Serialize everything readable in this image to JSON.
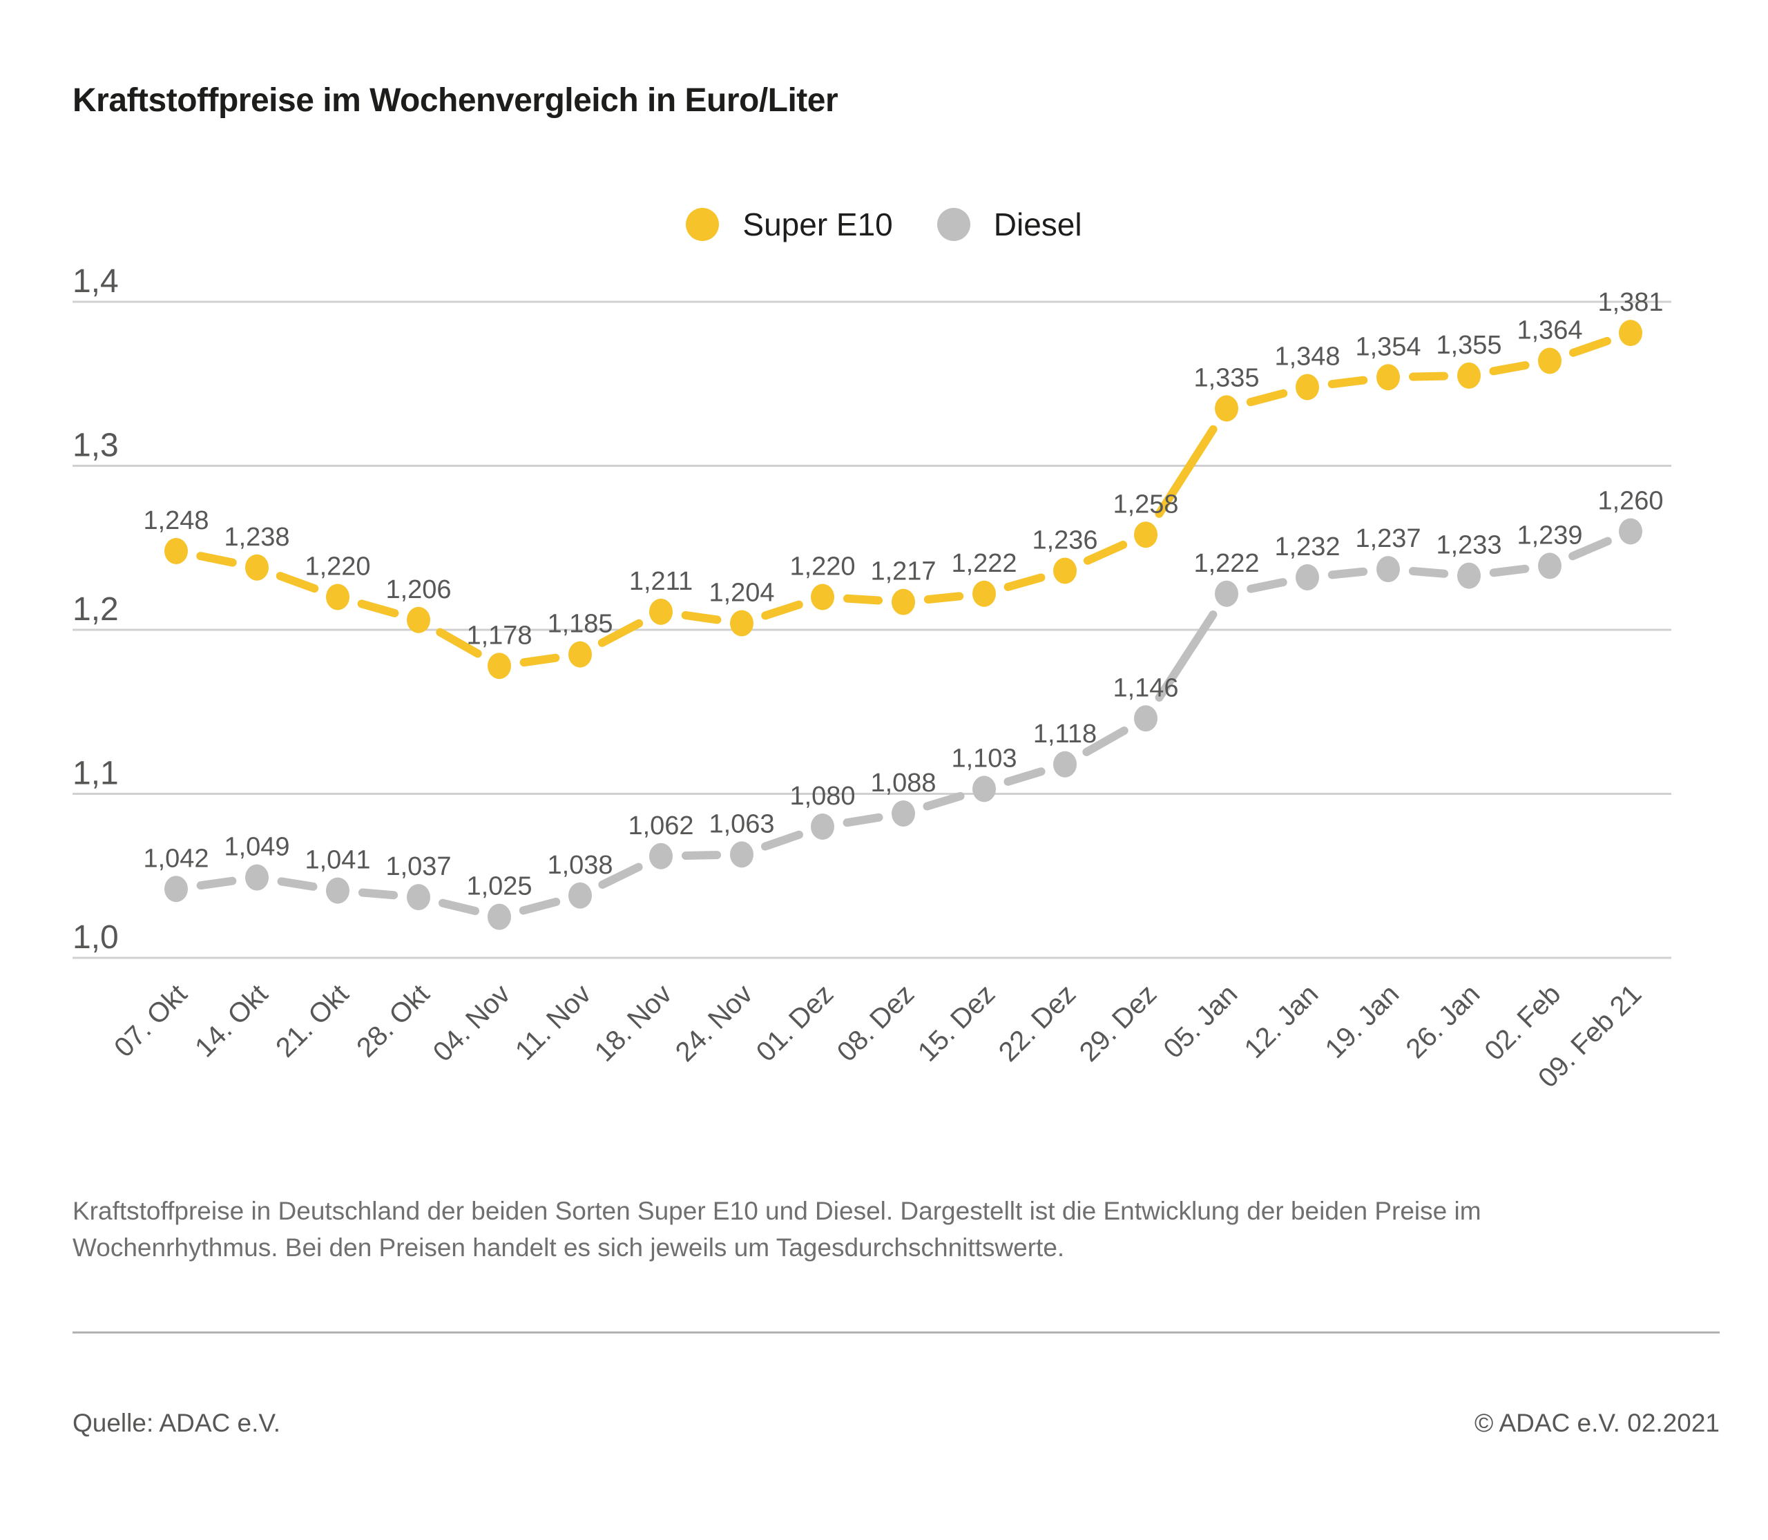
{
  "title": "Kraftstoffpreise im Wochenvergleich in Euro/Liter",
  "legend": {
    "items": [
      {
        "label": "Super E10",
        "color": "#F7C32B"
      },
      {
        "label": "Diesel",
        "color": "#BFBFBF"
      }
    ]
  },
  "chart_data": {
    "type": "line",
    "categories": [
      "07. Okt",
      "14. Okt",
      "21. Okt",
      "28. Okt",
      "04. Nov",
      "11. Nov",
      "18. Nov",
      "24. Nov",
      "01. Dez",
      "08. Dez",
      "15. Dez",
      "22. Dez",
      "29. Dez",
      "05. Jan",
      "12. Jan",
      "19. Jan",
      "26. Jan",
      "02. Feb",
      "09. Feb 21"
    ],
    "series": [
      {
        "name": "Super E10",
        "color": "#F7C32B",
        "values": [
          1.248,
          1.238,
          1.22,
          1.206,
          1.178,
          1.185,
          1.211,
          1.204,
          1.22,
          1.217,
          1.222,
          1.236,
          1.258,
          1.335,
          1.348,
          1.354,
          1.355,
          1.364,
          1.381
        ]
      },
      {
        "name": "Diesel",
        "color": "#BFBFBF",
        "values": [
          1.042,
          1.049,
          1.041,
          1.037,
          1.025,
          1.038,
          1.062,
          1.063,
          1.08,
          1.088,
          1.103,
          1.118,
          1.146,
          1.222,
          1.232,
          1.237,
          1.233,
          1.239,
          1.26
        ]
      }
    ],
    "title": "Kraftstoffpreise im Wochenvergleich in Euro/Liter",
    "xlabel": "",
    "ylabel": "",
    "ylim": [
      1.0,
      1.4
    ],
    "yticks": [
      1.0,
      1.1,
      1.2,
      1.3,
      1.4
    ],
    "ytick_labels": [
      "1,0",
      "1,1",
      "1,2",
      "1,3",
      "1,4"
    ],
    "grid": true,
    "legend_position": "top-center",
    "point_labels_visible": true,
    "decimal_separator": ",",
    "value_decimals": 3
  },
  "caption": "Kraftstoffpreise in Deutschland der beiden Sorten Super E10 und Diesel. Dargestellt ist die Entwicklung der beiden Preise im Wochenrhythmus. Bei den Preisen handelt es sich jeweils um Tagesdurchschnittswerte.",
  "footer": {
    "source": "Quelle: ADAC e.V.",
    "copyright": "© ADAC e.V. 02.2021"
  },
  "colors": {
    "grid_line": "#D0D0D0",
    "axis_text": "#575756",
    "data_label_text": "#575756",
    "title_text": "#1D1D1B",
    "caption_text": "#706F6F",
    "divider": "#B2B2B2"
  }
}
